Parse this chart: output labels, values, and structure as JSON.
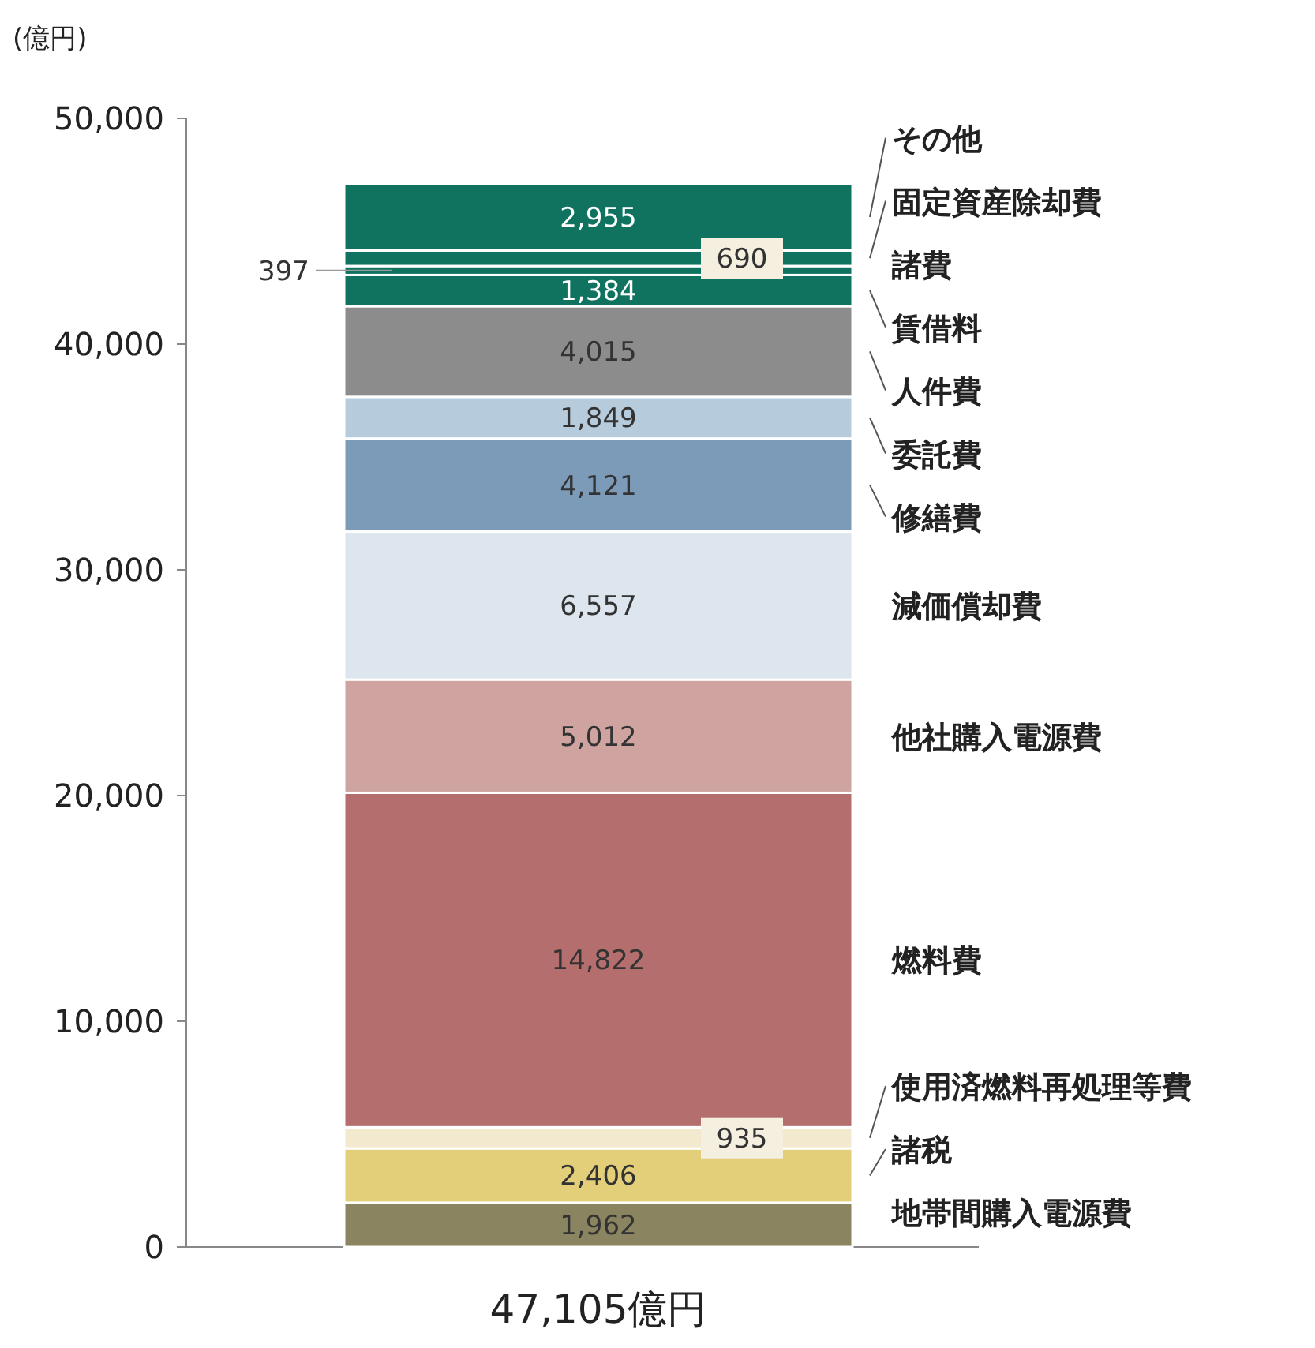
{
  "chart_data": {
    "type": "bar",
    "stacked": true,
    "ylabel": "(億円)",
    "categories": [
      "47,105億円"
    ],
    "ylim": [
      0,
      50000
    ],
    "yticks": [
      {
        "value": 0,
        "label": "0"
      },
      {
        "value": 10000,
        "label": "10,000"
      },
      {
        "value": 20000,
        "label": "20,000"
      },
      {
        "value": 30000,
        "label": "30,000"
      },
      {
        "value": 40000,
        "label": "40,000"
      },
      {
        "value": 50000,
        "label": "50,000"
      }
    ],
    "grid": false,
    "series": [
      {
        "name": "地帯間購入電源費",
        "color": "#8a8560",
        "values": [
          1962
        ],
        "value_labels": [
          "1,962"
        ]
      },
      {
        "name": "諸税",
        "color": "#e3cf7a",
        "values": [
          2406
        ],
        "value_labels": [
          "2,406"
        ]
      },
      {
        "name": "使用済燃料再処理等費",
        "color": "#f3e9cf",
        "values": [
          935
        ],
        "value_labels": [
          "935"
        ]
      },
      {
        "name": "燃料費",
        "color": "#b56e6e",
        "values": [
          14822
        ],
        "value_labels": [
          "14,822"
        ]
      },
      {
        "name": "他社購入電源費",
        "color": "#cfa3a0",
        "values": [
          5012
        ],
        "value_labels": [
          "5,012"
        ]
      },
      {
        "name": "減価償却費",
        "color": "#dde6ee",
        "values": [
          6557
        ],
        "value_labels": [
          "6,557"
        ]
      },
      {
        "name": "修繕費",
        "color": "#7b9bb8",
        "values": [
          4121
        ],
        "value_labels": [
          "4,121"
        ]
      },
      {
        "name": "委託費",
        "color": "#b6cbdc",
        "values": [
          1849
        ],
        "value_labels": [
          "1,849"
        ]
      },
      {
        "name": "人件費",
        "color": "#8c8c8c",
        "values": [
          4015
        ],
        "value_labels": [
          "4,015"
        ]
      },
      {
        "name": "賃借料",
        "color": "#0f7360",
        "values": [
          1384
        ],
        "value_labels": [
          "1,384"
        ]
      },
      {
        "name": "諸費",
        "color": "#0f7360",
        "values": [
          397
        ],
        "value_labels": [
          "397"
        ]
      },
      {
        "name": "固定資産除却費",
        "color": "#0f7360",
        "values": [
          690
        ],
        "value_labels": [
          "690"
        ]
      },
      {
        "name": "その他",
        "color": "#0f7360",
        "values": [
          2955
        ],
        "value_labels": [
          "2,955"
        ]
      }
    ]
  }
}
